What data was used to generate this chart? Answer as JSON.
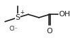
{
  "bg_color": "#ffffff",
  "fig_width": 1.03,
  "fig_height": 0.59,
  "dpi": 100,
  "S_label": "S",
  "S_plus": "+",
  "Cl_label": "Cl⁻",
  "OH_label": "OH",
  "O_label": "O",
  "line_color": "#1a1a1a",
  "text_color": "#1a1a1a",
  "font_size_atoms": 7,
  "font_size_charge": 5.5,
  "font_size_cl": 6,
  "line_width": 1.2,
  "sx": 0.28,
  "sy": 0.56
}
